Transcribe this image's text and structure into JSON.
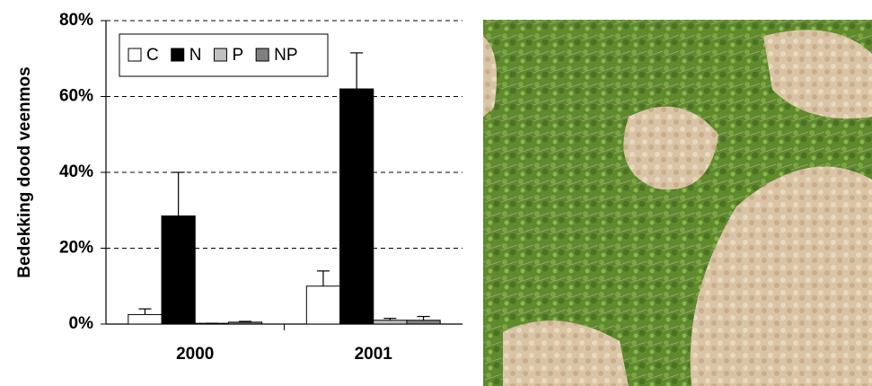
{
  "chart_data": {
    "type": "bar",
    "y_label": "Bedekking dood veenmos",
    "categories": [
      "2000",
      "2001"
    ],
    "series": [
      {
        "name": "C",
        "color": "#ffffff",
        "values": [
          2.5,
          10
        ],
        "errors": [
          1.5,
          4
        ]
      },
      {
        "name": "N",
        "color": "#000000",
        "values": [
          28.5,
          62
        ],
        "errors": [
          11.5,
          9.5
        ]
      },
      {
        "name": "P",
        "color": "#c0c0c0",
        "values": [
          0.2,
          1
        ],
        "errors": [
          0,
          0.5
        ]
      },
      {
        "name": "NP",
        "color": "#808080",
        "values": [
          0.5,
          1
        ],
        "errors": [
          0.2,
          1
        ]
      }
    ],
    "ylim": [
      0,
      80
    ],
    "yticks": [
      {
        "value": 0,
        "label": "0%"
      },
      {
        "value": 20,
        "label": "20%"
      },
      {
        "value": 40,
        "label": "40%"
      },
      {
        "value": 60,
        "label": "60%"
      },
      {
        "value": 80,
        "label": "80%"
      }
    ],
    "grid": true,
    "legend": "upper left"
  }
}
